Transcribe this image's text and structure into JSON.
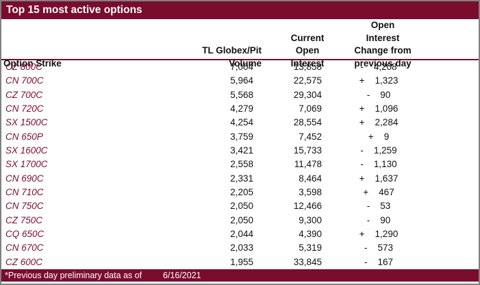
{
  "chart_data": {
    "type": "table",
    "title": "Top 15 most active options",
    "columns": {
      "strike": "Option Strike",
      "volume_lines": [
        "TL Globex/Pit",
        "Volume"
      ],
      "open_interest_lines": [
        "Current",
        "Open",
        "Interest"
      ],
      "change_lines": [
        "Open Interest",
        "Change from",
        "previous day"
      ]
    },
    "rows": [
      {
        "strike": "CZ 800C",
        "volume": "7,004",
        "open_interest": "13,858",
        "change_sign": "-",
        "change_value": "4,208"
      },
      {
        "strike": "CN 700C",
        "volume": "5,964",
        "open_interest": "22,575",
        "change_sign": "+",
        "change_value": "1,323"
      },
      {
        "strike": "CZ 700C",
        "volume": "5,568",
        "open_interest": "29,304",
        "change_sign": "-",
        "change_value": "90"
      },
      {
        "strike": "CN 720C",
        "volume": "4,279",
        "open_interest": "7,069",
        "change_sign": "+",
        "change_value": "1,096"
      },
      {
        "strike": "SX 1500C",
        "volume": "4,254",
        "open_interest": "28,554",
        "change_sign": "+",
        "change_value": "2,284"
      },
      {
        "strike": "CN 650P",
        "volume": "3,759",
        "open_interest": "7,452",
        "change_sign": "+",
        "change_value": "9"
      },
      {
        "strike": "SX 1600C",
        "volume": "3,421",
        "open_interest": "15,733",
        "change_sign": "-",
        "change_value": "1,259"
      },
      {
        "strike": "SX 1700C",
        "volume": "2,558",
        "open_interest": "11,478",
        "change_sign": "-",
        "change_value": "1,130"
      },
      {
        "strike": "CN 690C",
        "volume": "2,331",
        "open_interest": "8,464",
        "change_sign": "+",
        "change_value": "1,637"
      },
      {
        "strike": "CN 710C",
        "volume": "2,205",
        "open_interest": "3,598",
        "change_sign": "+",
        "change_value": "467"
      },
      {
        "strike": "CN 750C",
        "volume": "2,050",
        "open_interest": "12,466",
        "change_sign": "-",
        "change_value": "53"
      },
      {
        "strike": "CZ 750C",
        "volume": "2,050",
        "open_interest": "9,300",
        "change_sign": "-",
        "change_value": "90"
      },
      {
        "strike": "CQ 650C",
        "volume": "2,044",
        "open_interest": "4,390",
        "change_sign": "+",
        "change_value": "1,290"
      },
      {
        "strike": "CN 670C",
        "volume": "2,033",
        "open_interest": "5,319",
        "change_sign": "-",
        "change_value": "573"
      },
      {
        "strike": "CZ 600C",
        "volume": "1,955",
        "open_interest": "33,845",
        "change_sign": "-",
        "change_value": "167"
      }
    ],
    "footer": {
      "note": "*Previous day preliminary data as of",
      "date": "6/16/2021"
    }
  },
  "colors": {
    "maroon": "#7a0c2e",
    "text": "#111111",
    "border_gray": "#808080"
  }
}
